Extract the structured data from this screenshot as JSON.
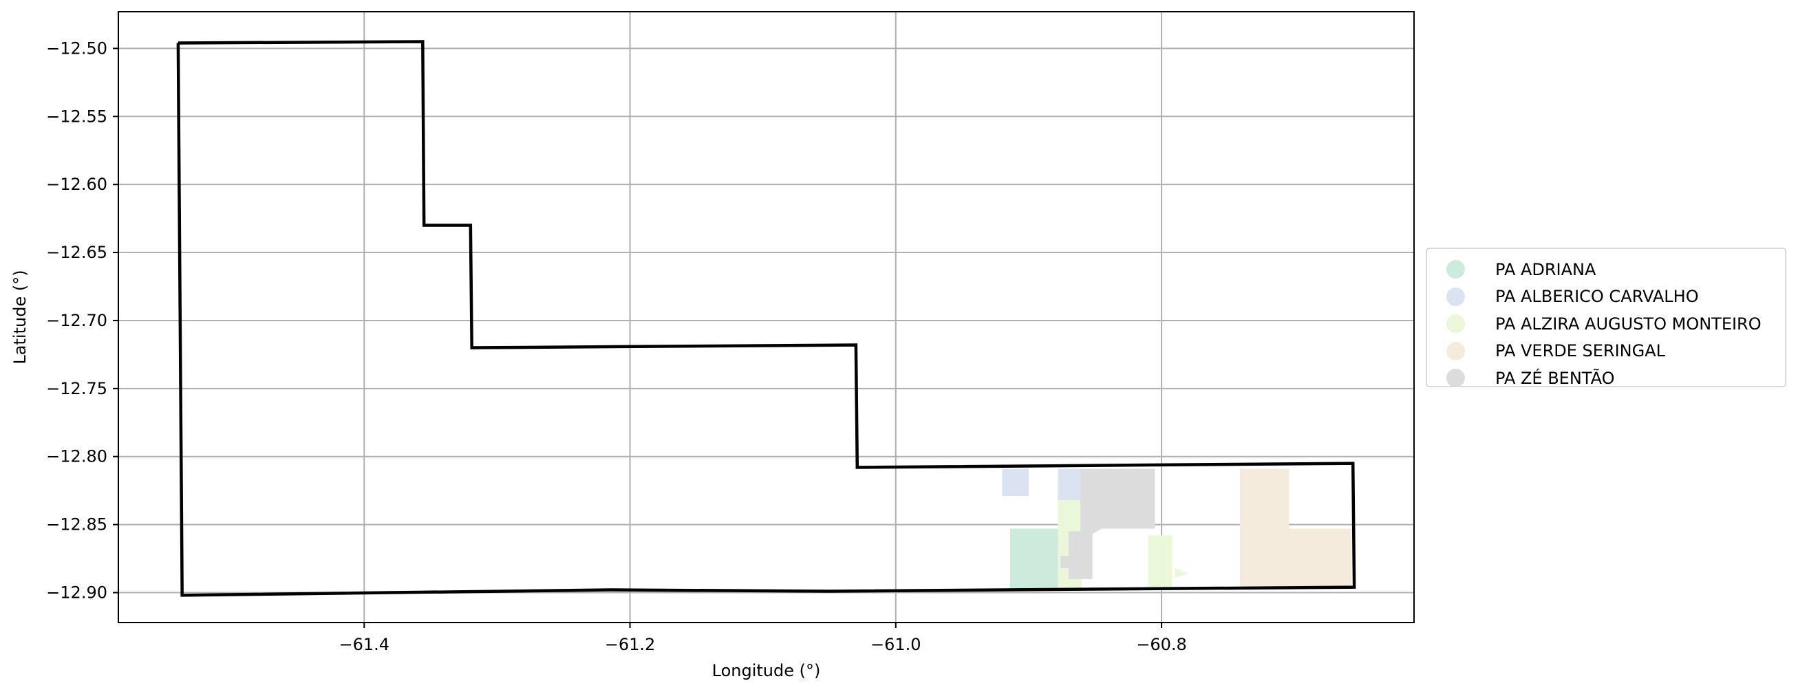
{
  "chart_data": {
    "type": "map",
    "xlabel": "Longitude (°)",
    "ylabel": "Latitude (°)",
    "xlim": [
      -61.585,
      -60.61
    ],
    "ylim": [
      -12.922,
      -12.473
    ],
    "xticks": [
      -61.4,
      -61.2,
      -61.0,
      -60.8
    ],
    "xtick_labels": [
      "−61.4",
      "−61.2",
      "−61.0",
      "−60.8"
    ],
    "yticks": [
      -12.5,
      -12.55,
      -12.6,
      -12.65,
      -12.7,
      -12.75,
      -12.8,
      -12.85,
      -12.9
    ],
    "ytick_labels": [
      "−12.50",
      "−12.55",
      "−12.60",
      "−12.65",
      "−12.70",
      "−12.75",
      "−12.80",
      "−12.85",
      "−12.90"
    ],
    "grid": true,
    "legend_position": "center-right outside",
    "boundary": {
      "color": "#000000",
      "coords": [
        [
          -61.54,
          -12.496
        ],
        [
          -61.356,
          -12.495
        ],
        [
          -61.355,
          -12.63
        ],
        [
          -61.32,
          -12.63
        ],
        [
          -61.319,
          -12.72
        ],
        [
          -61.03,
          -12.718
        ],
        [
          -61.029,
          -12.808
        ],
        [
          -60.656,
          -12.805
        ],
        [
          -60.655,
          -12.896
        ],
        [
          -61.05,
          -12.899
        ],
        [
          -61.215,
          -12.898
        ],
        [
          -61.537,
          -12.902
        ],
        [
          -61.54,
          -12.496
        ]
      ]
    },
    "legend": [
      {
        "name": "PA ADRIANA",
        "color": "#cdebdc"
      },
      {
        "name": "PA ALBERICO CARVALHO",
        "color": "#dbe3f2"
      },
      {
        "name": "PA ALZIRA AUGUSTO MONTEIRO",
        "color": "#eaf7d8"
      },
      {
        "name": "PA VERDE SERINGAL",
        "color": "#f5ebdd"
      },
      {
        "name": "PA ZÉ BENTÃO",
        "color": "#dcdcdc"
      }
    ],
    "regions": [
      {
        "name": "PA ADRIANA",
        "color": "#cdebdc",
        "polygons": [
          [
            [
              -60.914,
              -12.853
            ],
            [
              -60.878,
              -12.853
            ],
            [
              -60.878,
              -12.897
            ],
            [
              -60.914,
              -12.897
            ]
          ]
        ]
      },
      {
        "name": "PA ALBERICO CARVALHO",
        "color": "#dbe3f2",
        "polygons": [
          [
            [
              -60.92,
              -12.809
            ],
            [
              -60.9,
              -12.809
            ],
            [
              -60.9,
              -12.829
            ],
            [
              -60.92,
              -12.829
            ]
          ],
          [
            [
              -60.878,
              -12.809
            ],
            [
              -60.86,
              -12.809
            ],
            [
              -60.86,
              -12.832
            ],
            [
              -60.878,
              -12.832
            ]
          ]
        ]
      },
      {
        "name": "PA ALZIRA AUGUSTO MONTEIRO",
        "color": "#eaf7d8",
        "polygons": [
          [
            [
              -60.878,
              -12.832
            ],
            [
              -60.86,
              -12.832
            ],
            [
              -60.86,
              -12.897
            ],
            [
              -60.878,
              -12.897
            ]
          ],
          [
            [
              -60.81,
              -12.858
            ],
            [
              -60.792,
              -12.858
            ],
            [
              -60.792,
              -12.897
            ],
            [
              -60.81,
              -12.897
            ]
          ],
          [
            [
              -60.79,
              -12.882
            ],
            [
              -60.78,
              -12.886
            ],
            [
              -60.79,
              -12.889
            ]
          ]
        ]
      },
      {
        "name": "PA VERDE SERINGAL",
        "color": "#f5ebdd",
        "polygons": [
          [
            [
              -60.741,
              -12.809
            ],
            [
              -60.704,
              -12.809
            ],
            [
              -60.704,
              -12.853
            ],
            [
              -60.657,
              -12.853
            ],
            [
              -60.657,
              -12.896
            ],
            [
              -60.741,
              -12.896
            ]
          ]
        ]
      },
      {
        "name": "PA ZÉ BENTÃO",
        "color": "#dcdcdc",
        "polygons": [
          [
            [
              -60.861,
              -12.809
            ],
            [
              -60.805,
              -12.809
            ],
            [
              -60.805,
              -12.853
            ],
            [
              -60.845,
              -12.853
            ],
            [
              -60.852,
              -12.857
            ],
            [
              -60.852,
              -12.89
            ],
            [
              -60.87,
              -12.89
            ],
            [
              -60.87,
              -12.882
            ],
            [
              -60.876,
              -12.882
            ],
            [
              -60.876,
              -12.873
            ],
            [
              -60.87,
              -12.873
            ],
            [
              -60.87,
              -12.855
            ],
            [
              -60.861,
              -12.855
            ]
          ]
        ]
      }
    ]
  }
}
